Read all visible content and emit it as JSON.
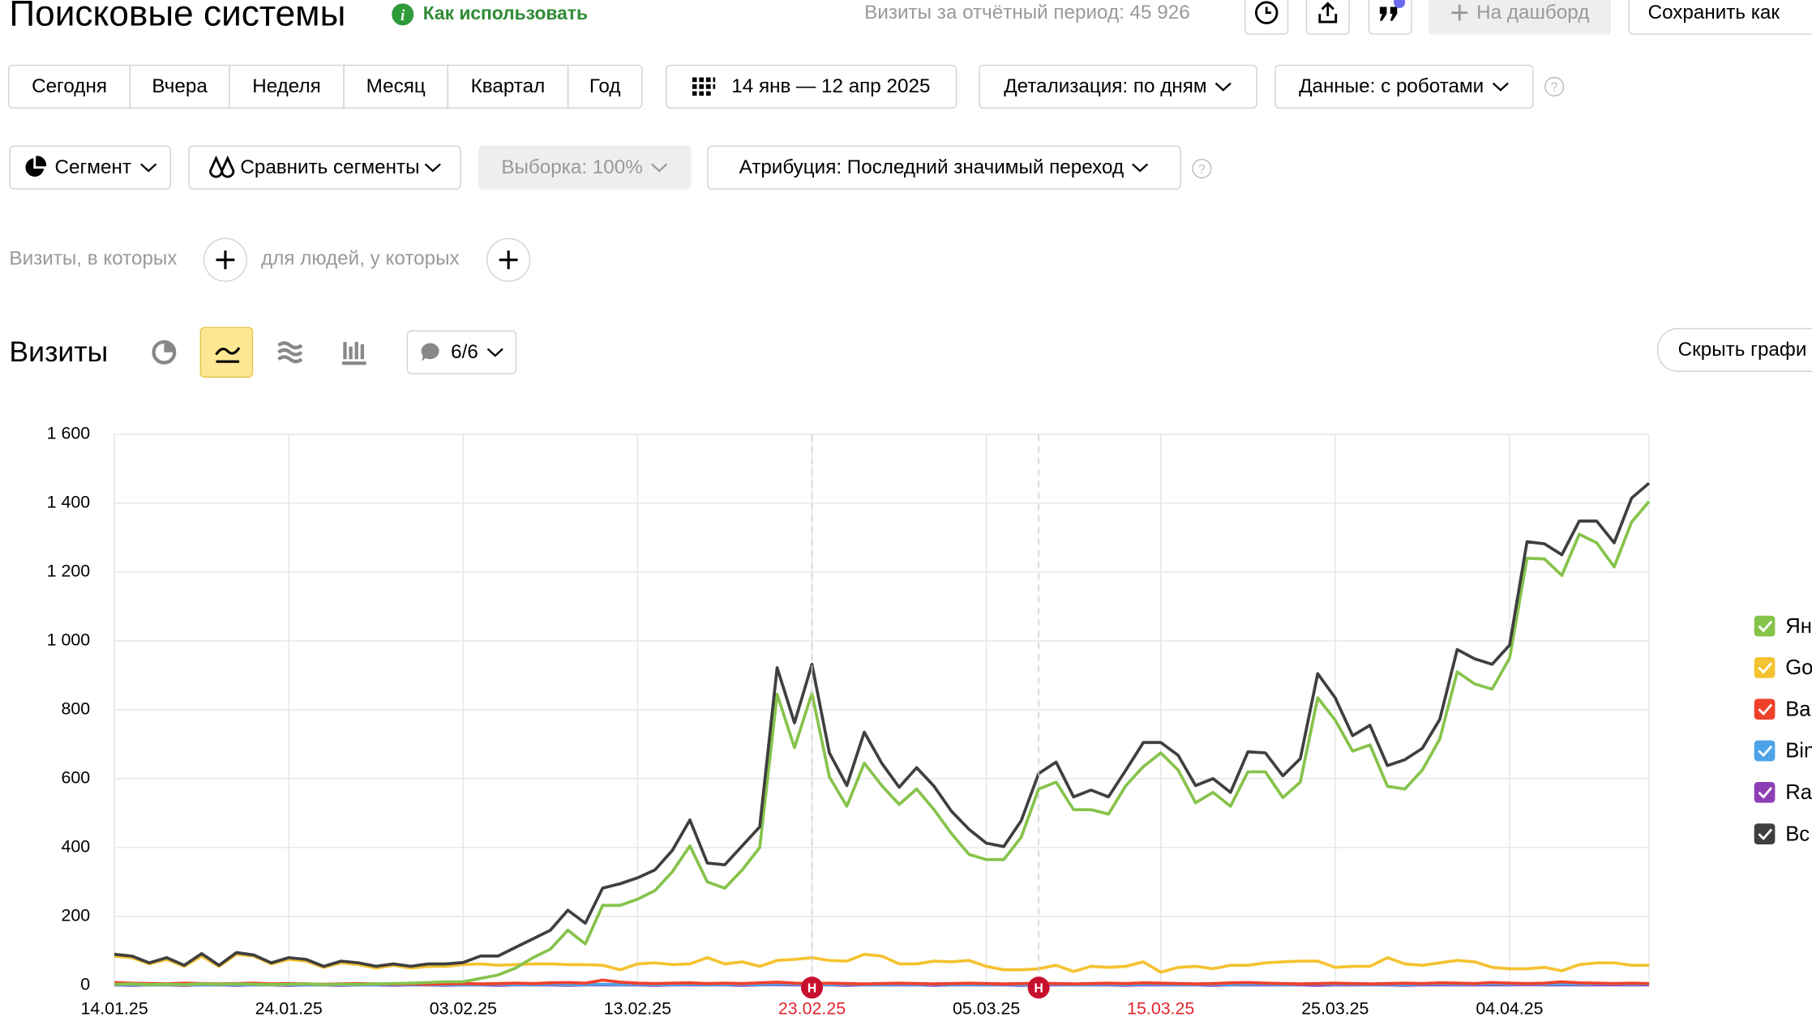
{
  "header": {
    "title": "Поисковые системы",
    "help_link": "Как использовать",
    "total_visits": "Визиты за отчётный период: 45 926",
    "add_to_dashboard": "На дашборд",
    "save_as": "Сохранить как"
  },
  "periods": [
    "Сегодня",
    "Вчера",
    "Неделя",
    "Месяц",
    "Квартал",
    "Год"
  ],
  "filters": {
    "date_range": "14 янв — 12 апр 2025",
    "detail": "Детализация: по дням",
    "data_mode": "Данные: с роботами",
    "segment": "Сегмент",
    "compare": "Сравнить сегменты",
    "sample": "Выборка: 100%",
    "attribution": "Атрибуция: Последний значимый переход"
  },
  "condition": {
    "visits_where": "Визиты, в которых",
    "people_where": "для людей, у которых"
  },
  "chart_header": {
    "title": "Визиты",
    "series_toggle": "6/6",
    "hide_chart": "Скрыть графи"
  },
  "chart_data": {
    "type": "line",
    "categories": [
      "14.01.25",
      null,
      null,
      null,
      null,
      null,
      null,
      null,
      null,
      null,
      "24.01.25",
      null,
      null,
      null,
      null,
      null,
      null,
      null,
      null,
      null,
      "03.02.25",
      null,
      null,
      null,
      null,
      null,
      null,
      null,
      null,
      null,
      "13.02.25",
      null,
      null,
      null,
      null,
      null,
      null,
      null,
      null,
      null,
      "23.02.25",
      null,
      null,
      null,
      null,
      null,
      null,
      null,
      null,
      null,
      "05.03.25",
      null,
      null,
      null,
      null,
      null,
      null,
      null,
      null,
      null,
      "15.03.25",
      null,
      null,
      null,
      null,
      null,
      null,
      null,
      null,
      null,
      "25.03.25",
      null,
      null,
      null,
      null,
      null,
      null,
      null,
      null,
      null,
      "04.04.25",
      null,
      null,
      null,
      null,
      null,
      null,
      null,
      null
    ],
    "series": [
      {
        "name": "Ян",
        "color": "#86c34b",
        "values": [
          3,
          4,
          2,
          3,
          2,
          4,
          3,
          4,
          3,
          2,
          3,
          4,
          2,
          3,
          3,
          4,
          5,
          6,
          8,
          10,
          10,
          20,
          30,
          50,
          80,
          105,
          160,
          120,
          232,
          232,
          250,
          275,
          330,
          405,
          300,
          282,
          335,
          400,
          845,
          690,
          848,
          605,
          520,
          645,
          580,
          525,
          570,
          510,
          440,
          380,
          365,
          365,
          430,
          570,
          590,
          510,
          510,
          497,
          580,
          635,
          675,
          625,
          530,
          560,
          520,
          620,
          620,
          545,
          590,
          835,
          770,
          680,
          698,
          578,
          570,
          625,
          715,
          910,
          875,
          860,
          950,
          1240,
          1238,
          1190,
          1310,
          1285,
          1215,
          1345,
          1405
        ]
      },
      {
        "name": "Go",
        "color": "#f5c231",
        "values": [
          85,
          80,
          62,
          75,
          55,
          85,
          55,
          90,
          85,
          62,
          75,
          70,
          52,
          65,
          60,
          50,
          58,
          50,
          55,
          55,
          60,
          62,
          58,
          60,
          62,
          62,
          60,
          60,
          58,
          45,
          62,
          65,
          60,
          62,
          80,
          62,
          68,
          55,
          72,
          75,
          80,
          72,
          70,
          90,
          85,
          62,
          62,
          70,
          68,
          72,
          55,
          45,
          45,
          48,
          58,
          40,
          55,
          52,
          55,
          68,
          38,
          52,
          55,
          48,
          58,
          58,
          65,
          68,
          70,
          70,
          52,
          55,
          55,
          80,
          62,
          58,
          65,
          72,
          68,
          52,
          48,
          48,
          52,
          42,
          60,
          65,
          65,
          58,
          58
        ]
      },
      {
        "name": "Ba",
        "color": "#f0412b",
        "values": [
          8,
          6,
          5,
          4,
          6,
          5,
          4,
          5,
          6,
          4,
          5,
          4,
          3,
          4,
          5,
          4,
          3,
          4,
          3,
          4,
          5,
          4,
          5,
          6,
          5,
          7,
          8,
          6,
          15,
          9,
          6,
          5,
          6,
          7,
          5,
          6,
          5,
          7,
          9,
          6,
          5,
          6,
          5,
          4,
          5,
          6,
          5,
          4,
          5,
          6,
          5,
          4,
          5,
          6,
          5,
          4,
          5,
          6,
          5,
          7,
          6,
          5,
          4,
          5,
          7,
          8,
          6,
          5,
          4,
          5,
          6,
          5,
          4,
          5,
          6,
          5,
          7,
          6,
          5,
          8,
          6,
          5,
          6,
          10,
          7,
          6,
          5,
          6,
          5
        ]
      },
      {
        "name": "Bin",
        "color": "#4da3e8",
        "values": [
          2,
          2,
          1,
          2,
          2,
          1,
          2,
          2,
          1,
          2,
          2,
          1,
          2,
          2,
          1,
          2,
          1,
          2,
          2,
          1,
          2,
          2,
          3,
          2,
          2,
          3,
          2,
          2,
          3,
          2,
          3,
          2,
          2,
          3,
          2,
          2,
          3,
          2,
          4,
          3,
          3,
          2,
          3,
          2,
          2,
          3,
          2,
          3,
          2,
          2,
          2,
          3,
          2,
          2,
          3,
          2,
          2,
          3,
          2,
          3,
          3,
          2,
          2,
          3,
          2,
          3,
          3,
          2,
          3,
          4,
          3,
          3,
          2,
          3,
          2,
          3,
          4,
          3,
          3,
          4,
          3,
          4,
          3,
          4,
          3,
          4,
          4,
          3,
          4
        ]
      },
      {
        "name": "Ra",
        "color": "#8e3fb5",
        "values": [
          1,
          0,
          1,
          1,
          0,
          1,
          1,
          0,
          1,
          1,
          0,
          1,
          1,
          0,
          1,
          1,
          0,
          1,
          1,
          0,
          1,
          1,
          0,
          1,
          1,
          1,
          0,
          1,
          1,
          1,
          1,
          0,
          1,
          1,
          1,
          1,
          0,
          1,
          2,
          1,
          1,
          1,
          0,
          1,
          1,
          1,
          1,
          0,
          1,
          1,
          1,
          1,
          0,
          1,
          1,
          1,
          1,
          1,
          0,
          1,
          1,
          1,
          1,
          0,
          1,
          1,
          1,
          1,
          1,
          0,
          1,
          1,
          1,
          1,
          0,
          1,
          1,
          1,
          1,
          1,
          1,
          2,
          1,
          1,
          1,
          1,
          1,
          1,
          1
        ]
      },
      {
        "name": "Вс",
        "color": "#3f3f3f",
        "values": [
          90,
          85,
          65,
          80,
          58,
          92,
          58,
          95,
          88,
          65,
          80,
          75,
          55,
          70,
          65,
          55,
          62,
          55,
          62,
          62,
          66,
          85,
          85,
          110,
          135,
          160,
          218,
          180,
          282,
          295,
          312,
          335,
          392,
          480,
          355,
          350,
          405,
          460,
          922,
          762,
          932,
          675,
          580,
          735,
          645,
          575,
          632,
          578,
          505,
          453,
          413,
          403,
          478,
          615,
          648,
          547,
          567,
          547,
          625,
          705,
          705,
          668,
          580,
          600,
          560,
          678,
          675,
          608,
          658,
          905,
          835,
          725,
          755,
          638,
          655,
          688,
          772,
          975,
          948,
          932,
          988,
          1288,
          1282,
          1250,
          1348,
          1348,
          1285,
          1415,
          1458
        ]
      }
    ],
    "ylim": [
      0,
      1600
    ],
    "yticks": [
      0,
      200,
      400,
      600,
      800,
      {
        "value": 1000,
        "label": "1 000"
      },
      {
        "value": 1200,
        "label": "1 200"
      },
      {
        "value": 1400,
        "label": "1 400"
      },
      {
        "value": 1600,
        "label": "1 600"
      }
    ],
    "grid": true,
    "annotations": [
      {
        "index": 40,
        "label": "Н"
      },
      {
        "index": 53,
        "label": "Н"
      }
    ],
    "holiday_categories": [
      40,
      60
    ],
    "holiday_color": "#e0242f",
    "annotation_color": "#c8102e"
  }
}
